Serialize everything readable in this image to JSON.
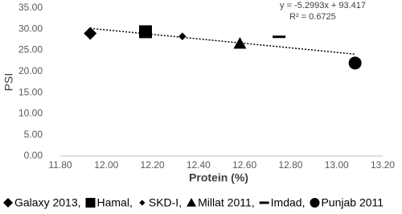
{
  "chart_data": {
    "type": "scatter",
    "x_label": "Protein (%)",
    "y_label": "PSI",
    "xlim": [
      11.8,
      13.2
    ],
    "xticks": [
      {
        "value": 11.8,
        "label": "11.80"
      },
      {
        "value": 12.0,
        "label": "12.00"
      },
      {
        "value": 12.2,
        "label": "12.20"
      },
      {
        "value": 12.4,
        "label": "12.40"
      },
      {
        "value": 12.6,
        "label": "12.60"
      },
      {
        "value": 12.8,
        "label": "12.80"
      },
      {
        "value": 13.0,
        "label": "13.00"
      },
      {
        "value": 13.2,
        "label": "13.20"
      }
    ],
    "ylim": [
      0,
      35
    ],
    "yticks": [
      {
        "value": 0,
        "label": "0.00"
      },
      {
        "value": 5,
        "label": "5.00"
      },
      {
        "value": 10,
        "label": "10.00"
      },
      {
        "value": 15,
        "label": "15.00"
      },
      {
        "value": 20,
        "label": "20.00"
      },
      {
        "value": 25,
        "label": "25.00"
      },
      {
        "value": 30,
        "label": "30.00"
      },
      {
        "value": 35,
        "label": "35.00"
      }
    ],
    "grid": false,
    "legend": "bottom",
    "series": [
      {
        "name": "Galaxy 2013,",
        "color": "#000000",
        "marker": "diamond",
        "x": [
          11.93
        ],
        "values": [
          29.0
        ]
      },
      {
        "name": "Hamal,",
        "color": "#000000",
        "marker": "square",
        "x": [
          12.17
        ],
        "values": [
          29.4
        ]
      },
      {
        "name": "SKD-I,",
        "color": "#000000",
        "marker": "small-diamond",
        "x": [
          12.33
        ],
        "values": [
          28.3
        ]
      },
      {
        "name": "Millat 2011,",
        "color": "#000000",
        "marker": "triangle",
        "x": [
          12.58
        ],
        "values": [
          26.6
        ]
      },
      {
        "name": "Imdad,",
        "color": "#000000",
        "marker": "dash",
        "x": [
          12.75
        ],
        "values": [
          28.2
        ]
      },
      {
        "name": "Punjab 2011",
        "color": "#000000",
        "marker": "circle",
        "x": [
          13.08
        ],
        "values": [
          22.0
        ]
      }
    ],
    "trendline": {
      "equation": "y = -5.2993x + 93.417",
      "r_squared": "R² = 0.6725",
      "color": "#000000",
      "x": [
        11.93,
        13.08
      ],
      "values": [
        30.2,
        24.1
      ]
    }
  }
}
